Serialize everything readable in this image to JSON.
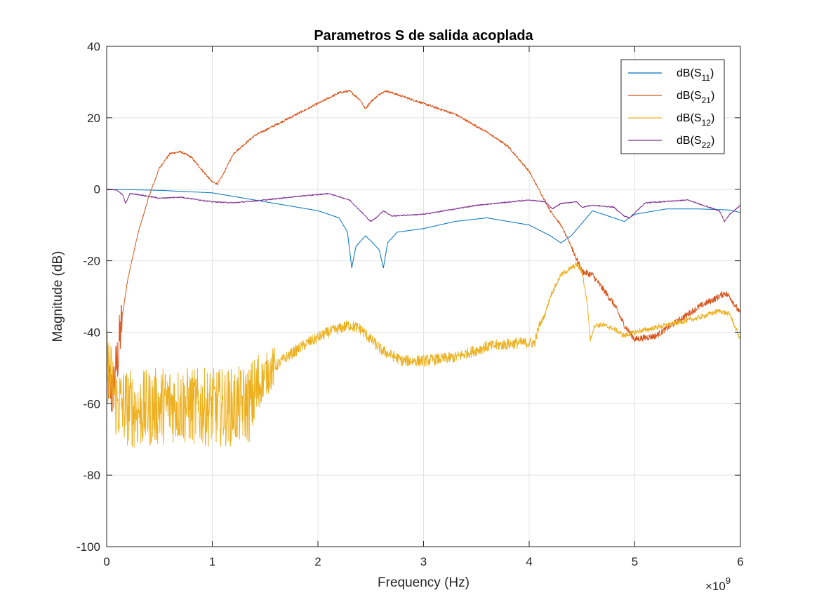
{
  "chart_data": {
    "type": "line",
    "title": "Parametros S de salida acoplada",
    "xlabel": "Frequency (Hz)",
    "ylabel": "Magnitude (dB)",
    "x_exponent": {
      "base": "×10",
      "power": "9"
    },
    "xlim": [
      0,
      6
    ],
    "ylim": [
      -100,
      40
    ],
    "x_ticks": [
      0,
      1,
      2,
      3,
      4,
      5,
      6
    ],
    "y_ticks": [
      -100,
      -80,
      -60,
      -40,
      -20,
      0,
      20,
      40
    ],
    "grid": true,
    "legend_position": "top-right",
    "series": [
      {
        "name": "dB(S11)",
        "legend_main": "dB(S",
        "legend_sub": "11",
        "legend_close": ")",
        "color": "#0072BD",
        "noise": 0,
        "x": [
          0,
          0.5,
          1.0,
          1.3,
          1.6,
          2.0,
          2.2,
          2.28,
          2.32,
          2.36,
          2.45,
          2.52,
          2.58,
          2.62,
          2.66,
          2.75,
          3.0,
          3.3,
          3.6,
          4.0,
          4.2,
          4.3,
          4.4,
          4.6,
          4.8,
          4.9,
          5.0,
          5.3,
          5.6,
          5.9,
          6.0
        ],
        "y": [
          0,
          -0.3,
          -1,
          -2.5,
          -4,
          -6,
          -8,
          -12,
          -22,
          -16,
          -13,
          -15,
          -17,
          -22,
          -15,
          -12,
          -11,
          -9,
          -8,
          -10,
          -13,
          -15,
          -13,
          -6,
          -8,
          -9,
          -7,
          -5.5,
          -5.5,
          -5.8,
          -6.5
        ]
      },
      {
        "name": "dB(S21)",
        "legend_main": "dB(S",
        "legend_sub": "21",
        "legend_close": ")",
        "color": "#D95319",
        "noise": 0.4,
        "x": [
          0,
          0.05,
          0.1,
          0.15,
          0.2,
          0.3,
          0.4,
          0.5,
          0.6,
          0.7,
          0.8,
          0.9,
          1.0,
          1.05,
          1.1,
          1.2,
          1.4,
          1.6,
          1.8,
          2.0,
          2.2,
          2.3,
          2.4,
          2.45,
          2.5,
          2.6,
          2.65,
          2.8,
          3.0,
          3.3,
          3.6,
          3.8,
          4.0,
          4.2,
          4.3,
          4.4,
          4.5,
          4.6,
          4.8,
          4.9,
          5.0,
          5.2,
          5.4,
          5.6,
          5.8,
          5.85,
          5.9,
          6.0
        ],
        "y": [
          -50,
          -58,
          -48,
          -35,
          -25,
          -12,
          -2,
          6,
          10,
          10.5,
          9,
          5.5,
          2,
          1.5,
          4,
          10,
          15,
          18,
          21,
          24,
          27,
          27.5,
          25,
          22.5,
          24.5,
          27,
          27.5,
          26,
          24,
          21,
          16,
          12,
          5,
          -6,
          -10,
          -16,
          -23,
          -24,
          -32,
          -38,
          -42,
          -41,
          -37,
          -33,
          -30,
          -29,
          -30,
          -35
        ]
      },
      {
        "name": "dB(S12)",
        "legend_main": "dB(S",
        "legend_sub": "12",
        "legend_close": ")",
        "color": "#EDB120",
        "noise": 1,
        "x": [
          0,
          0.05,
          0.1,
          0.3,
          0.6,
          0.9,
          1.2,
          1.35,
          1.5,
          1.7,
          1.9,
          2.1,
          2.3,
          2.4,
          2.6,
          2.8,
          3.0,
          3.3,
          3.6,
          3.9,
          4.05,
          4.1,
          4.15,
          4.2,
          4.3,
          4.4,
          4.45,
          4.5,
          4.55,
          4.58,
          4.62,
          4.7,
          4.8,
          4.9,
          5.0,
          5.3,
          5.6,
          5.8,
          5.9,
          6.0
        ],
        "y": [
          -48,
          -55,
          -60,
          -62,
          -60,
          -61,
          -61,
          -60,
          -52,
          -47,
          -43,
          -40,
          -38,
          -39,
          -45,
          -48,
          -48,
          -47,
          -44,
          -43,
          -43,
          -38,
          -35,
          -30,
          -24,
          -22,
          -21,
          -23,
          -32,
          -42,
          -38,
          -38,
          -39,
          -41,
          -40,
          -38,
          -36,
          -34,
          -35,
          -42
        ]
      },
      {
        "name": "dB(S22)",
        "legend_main": "dB(S",
        "legend_sub": "22",
        "legend_close": ")",
        "color": "#7E2F8E",
        "noise": 0.15,
        "x": [
          0,
          0.1,
          0.15,
          0.18,
          0.22,
          0.3,
          0.5,
          0.7,
          1.0,
          1.2,
          1.5,
          1.8,
          2.0,
          2.1,
          2.3,
          2.4,
          2.5,
          2.55,
          2.62,
          2.7,
          2.8,
          3.0,
          3.5,
          4.0,
          4.15,
          4.22,
          4.3,
          4.45,
          4.5,
          4.6,
          4.8,
          4.9,
          4.95,
          5.1,
          5.5,
          5.8,
          5.85,
          5.9,
          6.0
        ],
        "y": [
          0,
          -0.3,
          -1.5,
          -4,
          -1.2,
          -1.5,
          -2.5,
          -2.2,
          -3.5,
          -3.8,
          -3,
          -2,
          -1.5,
          -1.2,
          -3,
          -6,
          -9,
          -8,
          -6,
          -7.5,
          -7.3,
          -7,
          -4.5,
          -3,
          -3.5,
          -5.5,
          -4,
          -3.5,
          -5,
          -4.5,
          -5,
          -7.5,
          -8,
          -3.8,
          -3,
          -6,
          -9,
          -7,
          -4.5
        ]
      }
    ]
  }
}
